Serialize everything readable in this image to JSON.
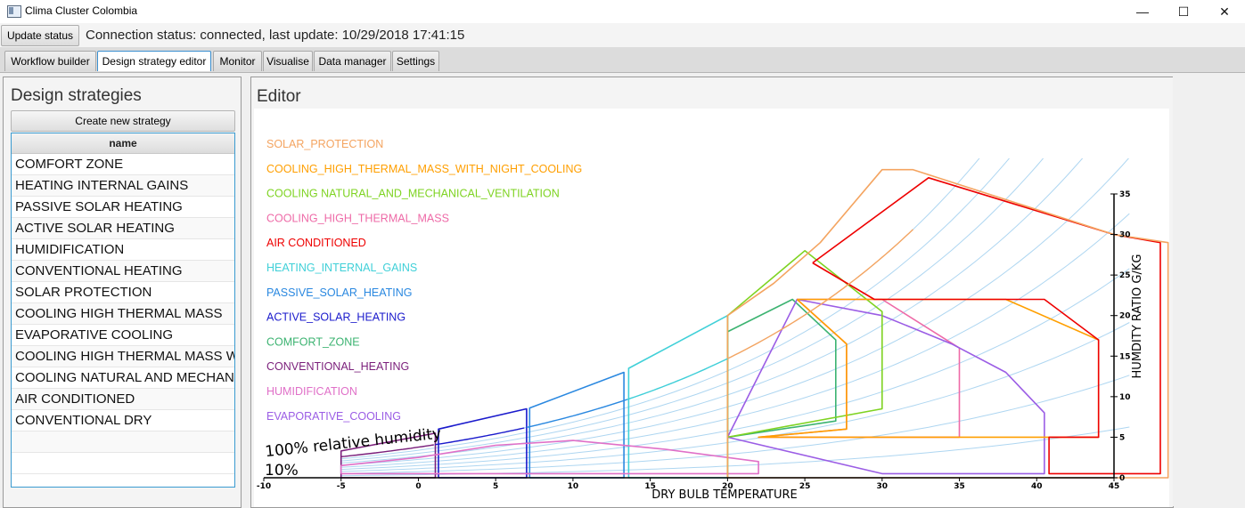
{
  "window": {
    "title": "Clima Cluster Colombia",
    "minimize": "—",
    "maximize": "☐",
    "close": "✕"
  },
  "toolbar": {
    "update_label": "Update status",
    "connection_status": "Connection status: connected, last update: 10/29/2018 17:41:15"
  },
  "tabs": [
    {
      "label": "Workflow builder",
      "active": false
    },
    {
      "label": "Design strategy editor",
      "active": true
    },
    {
      "label": "Monitor",
      "active": false
    },
    {
      "label": "Visualise",
      "active": false
    },
    {
      "label": "Data manager",
      "active": false
    },
    {
      "label": "Settings",
      "active": false
    }
  ],
  "strategies": {
    "title": "Design strategies",
    "create_label": "Create new strategy",
    "column_header": "name",
    "rows": [
      "COMFORT ZONE",
      "HEATING INTERNAL GAINS",
      "PASSIVE SOLAR HEATING",
      "ACTIVE SOLAR HEATING",
      "HUMIDIFICATION",
      "CONVENTIONAL HEATING",
      "SOLAR PROTECTION",
      "COOLING HIGH THERMAL MASS",
      "EVAPORATIVE COOLING",
      "COOLING HIGH THERMAL MASS WITH",
      "COOLING NATURAL AND MECHANICA",
      "AIR CONDITIONED",
      "CONVENTIONAL DRY"
    ]
  },
  "editor": {
    "title": "Editor"
  },
  "chart_data": {
    "type": "line",
    "xlabel": "DRY BULB TEMPERATURE",
    "ylabel": "HUMDITY RATIO G/KG",
    "xlim": [
      -10,
      45
    ],
    "ylim": [
      0,
      35
    ],
    "xticks": [
      -10,
      -5,
      0,
      5,
      10,
      15,
      20,
      25,
      30,
      35,
      40,
      45
    ],
    "yticks": [
      0,
      5,
      10,
      15,
      20,
      25,
      30,
      35
    ],
    "annotations": [
      "100% relative humidity",
      "10%"
    ],
    "grid_color": "#aed6f1",
    "saturation_segments": [
      {
        "x": [
          -5,
          1.1
        ],
        "color": "#7b1f7b"
      },
      {
        "x": [
          1.1,
          7
        ],
        "color": "#1a1acc"
      },
      {
        "x": [
          7,
          13.5
        ],
        "color": "#2a88e0"
      },
      {
        "x": [
          13.5,
          20
        ],
        "color": "#3fcfd8"
      },
      {
        "x": [
          20,
          32
        ],
        "color": "#f4a460"
      }
    ],
    "legend": [
      {
        "name": "SOLAR_PROTECTION",
        "color": "#f4a460"
      },
      {
        "name": "COOLING_HIGH_THERMAL_MASS_WITH_NIGHT_COOLING",
        "color": "#ff9f00"
      },
      {
        "name": "COOLING NATURAL_AND_MECHANICAL_VENTILATION",
        "color": "#7ed321"
      },
      {
        "name": "COOLING_HIGH_THERMAL_MASS",
        "color": "#ee6aa7"
      },
      {
        "name": "AIR CONDITIONED",
        "color": "#ee0000"
      },
      {
        "name": "HEATING_INTERNAL_GAINS",
        "color": "#40d0d8"
      },
      {
        "name": "PASSIVE_SOLAR_HEATING",
        "color": "#2a88e0"
      },
      {
        "name": "ACTIVE_SOLAR_HEATING",
        "color": "#1a1acc"
      },
      {
        "name": "COMFORT_ZONE",
        "color": "#3cb371"
      },
      {
        "name": "CONVENTIONAL_HEATING",
        "color": "#7b1f7b"
      },
      {
        "name": "HUMIDIFICATION",
        "color": "#e070c8"
      },
      {
        "name": "EVAPORATIVE_COOLING",
        "color": "#9b5de5"
      }
    ],
    "series": [
      {
        "name": "CONVENTIONAL_HEATING",
        "color": "#7b1f7b",
        "points": [
          [
            -5,
            0
          ],
          [
            1.1,
            0
          ],
          [
            1.1,
            5.5
          ],
          [
            -5,
            3.3
          ],
          [
            -5,
            0
          ]
        ]
      },
      {
        "name": "ACTIVE_SOLAR_HEATING",
        "color": "#1a1acc",
        "points": [
          [
            1.3,
            0
          ],
          [
            7,
            0
          ],
          [
            7,
            8.5
          ],
          [
            1.3,
            6.0
          ],
          [
            1.3,
            0
          ]
        ]
      },
      {
        "name": "PASSIVE_SOLAR_HEATING",
        "color": "#2a88e0",
        "points": [
          [
            7.2,
            0
          ],
          [
            13.3,
            0
          ],
          [
            13.3,
            13.0
          ],
          [
            7.2,
            8.6
          ],
          [
            7.2,
            0
          ]
        ]
      },
      {
        "name": "HEATING_INTERNAL_GAINS",
        "color": "#40d0d8",
        "points": [
          [
            13.6,
            0
          ],
          [
            20,
            0
          ],
          [
            20,
            20.0
          ],
          [
            13.6,
            13.5
          ],
          [
            13.6,
            0
          ]
        ]
      },
      {
        "name": "HUMIDIFICATION",
        "color": "#e070c8",
        "points": [
          [
            -5,
            0.5
          ],
          [
            22,
            0.5
          ],
          [
            22,
            2.0
          ],
          [
            16,
            3.5
          ],
          [
            10,
            4.6
          ],
          [
            5,
            4.0
          ],
          [
            0,
            2.5
          ],
          [
            -5,
            1.5
          ],
          [
            -5,
            0.5
          ]
        ]
      },
      {
        "name": "COMFORT_ZONE",
        "color": "#3cb371",
        "points": [
          [
            20,
            5
          ],
          [
            27,
            7
          ],
          [
            27,
            17
          ],
          [
            24.2,
            22
          ],
          [
            20,
            18
          ],
          [
            20,
            5
          ]
        ]
      },
      {
        "name": "COOLING_HIGH_THERMAL_MASS",
        "color": "#ee6aa7",
        "points": [
          [
            22,
            5
          ],
          [
            35,
            5
          ],
          [
            35,
            16
          ],
          [
            30,
            22
          ],
          [
            24.5,
            22
          ],
          [
            27.7,
            16.5
          ],
          [
            27.7,
            6
          ],
          [
            22,
            5
          ]
        ]
      },
      {
        "name": "EVAPORATIVE_COOLING",
        "color": "#9b5de5",
        "points": [
          [
            20,
            5
          ],
          [
            24.5,
            22
          ],
          [
            30,
            20
          ],
          [
            34.5,
            16.5
          ],
          [
            38,
            13
          ],
          [
            40.5,
            8
          ],
          [
            40.5,
            0.5
          ],
          [
            30,
            0.5
          ],
          [
            20,
            5
          ]
        ]
      },
      {
        "name": "COOLING NATURAL_AND_MECHANICAL_VENTILATION",
        "color": "#7ed321",
        "points": [
          [
            20,
            0
          ],
          [
            20,
            20
          ],
          [
            25,
            28
          ],
          [
            30,
            20.5
          ],
          [
            30,
            8.5
          ],
          [
            20,
            5
          ],
          [
            20,
            0
          ]
        ]
      },
      {
        "name": "COOLING_HIGH_THERMAL_MASS_WITH_NIGHT_COOLING",
        "color": "#ff9f00",
        "points": [
          [
            24.5,
            22
          ],
          [
            36,
            22
          ],
          [
            38,
            22
          ],
          [
            44,
            17
          ],
          [
            44,
            5
          ],
          [
            22,
            5
          ],
          [
            27.7,
            6
          ],
          [
            27.7,
            16.5
          ],
          [
            24.5,
            22
          ]
        ]
      },
      {
        "name": "AIR CONDITIONED",
        "color": "#ee0000",
        "points": [
          [
            25.5,
            26.5
          ],
          [
            33,
            37
          ],
          [
            45,
            30
          ],
          [
            48,
            29
          ],
          [
            48,
            0.5
          ],
          [
            40.8,
            0.5
          ],
          [
            40.8,
            5
          ],
          [
            44,
            5
          ],
          [
            44,
            17
          ],
          [
            40.5,
            22
          ],
          [
            29.5,
            22
          ],
          [
            25.5,
            26.5
          ]
        ]
      },
      {
        "name": "SOLAR_PROTECTION",
        "color": "#f4a460",
        "points": [
          [
            20,
            0
          ],
          [
            20,
            20
          ],
          [
            23,
            24
          ],
          [
            26,
            29
          ],
          [
            30,
            38
          ],
          [
            32,
            38
          ],
          [
            45,
            30
          ],
          [
            48.5,
            29
          ],
          [
            48.5,
            0
          ],
          [
            20,
            0
          ]
        ]
      }
    ]
  }
}
